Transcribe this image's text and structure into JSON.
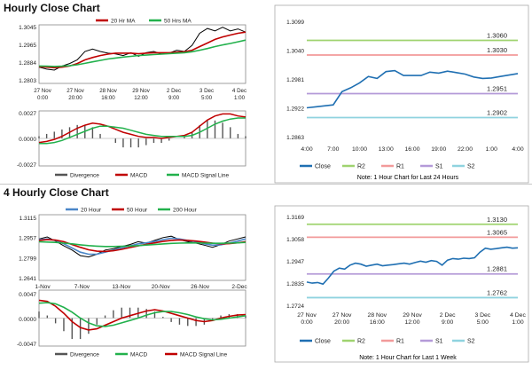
{
  "hourly": {
    "title": "Hourly Close Chart",
    "price_chart": {
      "legend": [
        "20 Hr MA",
        "50 Hrs MA"
      ],
      "legend_colors": [
        "#c00000",
        "#22b14c"
      ],
      "yticks": [
        "1.3045",
        "1.2965",
        "1.2884",
        "1.2803"
      ],
      "xticks": [
        "27 Nov|0:00",
        "27 Nov|20:00",
        "28 Nov|16:00",
        "29 Nov|12:00",
        "2 Dec|9:00",
        "3 Dec|5:00",
        "4 Dec|1:00"
      ]
    },
    "macd_chart": {
      "yticks": [
        "0.0027",
        "0.0000",
        "-0.0027"
      ],
      "legend": [
        "Divergence",
        "MACD",
        "MACD Signal Line"
      ]
    },
    "close_chart": {
      "yticks": [
        "1.3099",
        "1.3040",
        "1.2981",
        "1.2922",
        "1.2863"
      ],
      "xticks": [
        "4:00",
        "7:00",
        "10:00",
        "13:00",
        "16:00",
        "19:00",
        "22:00",
        "1:00",
        "4:00"
      ],
      "levels": [
        {
          "name": "R2",
          "label": "1.3060",
          "color": "#9fd36f"
        },
        {
          "name": "R1",
          "label": "1.3030",
          "color": "#f29a9a"
        },
        {
          "name": "S1",
          "label": "1.2951",
          "color": "#b49ad8"
        },
        {
          "name": "S2",
          "label": "1.2902",
          "color": "#8fd3df"
        }
      ],
      "legend": [
        "Close",
        "R2",
        "R1",
        "S1",
        "S2"
      ],
      "note": "Note: 1 Hour Chart for Last 24 Hours"
    }
  },
  "four_hourly": {
    "title": "4 Hourly Close Chart",
    "price_chart": {
      "legend": [
        "20 Hour",
        "50 Hour",
        "200 Hour"
      ],
      "legend_colors": [
        "#4a86c8",
        "#c00000",
        "#22b14c"
      ],
      "yticks": [
        "1.3115",
        "1.2957",
        "1.2799",
        "1.2641"
      ],
      "xticks": [
        "1-Nov",
        "7-Nov",
        "13-Nov",
        "20-Nov",
        "26-Nov",
        "2-Dec"
      ]
    },
    "macd_chart": {
      "yticks": [
        "0.0047",
        "0.0000",
        "-0.0047"
      ],
      "legend": [
        "Divergence",
        "MACD",
        "MACD Signal Line"
      ]
    },
    "close_chart": {
      "yticks": [
        "1.3169",
        "1.3058",
        "1.2947",
        "1.2835",
        "1.2724"
      ],
      "xticks": [
        "27 Nov|0:00",
        "27 Nov|20:00",
        "28 Nov|16:00",
        "29 Nov|12:00",
        "2 Dec|9:00",
        "3 Dec|5:00",
        "4 Dec|1:00"
      ],
      "levels": [
        {
          "name": "R2",
          "label": "1.3130",
          "color": "#9fd36f"
        },
        {
          "name": "R1",
          "label": "1.3065",
          "color": "#f29a9a"
        },
        {
          "name": "S1",
          "label": "1.2881",
          "color": "#b49ad8"
        },
        {
          "name": "S2",
          "label": "1.2762",
          "color": "#8fd3df"
        }
      ],
      "legend": [
        "Close",
        "R2",
        "R1",
        "S1",
        "S2"
      ],
      "note": "Note: 1 Hour Chart for Last 1 Week"
    }
  },
  "chart_data": [
    {
      "type": "line",
      "panel": "hourly-close",
      "x": [
        "4:00",
        "5:00",
        "6:00",
        "7:00",
        "8:00",
        "9:00",
        "10:00",
        "11:00",
        "12:00",
        "13:00",
        "14:00",
        "15:00",
        "16:00",
        "17:00",
        "18:00",
        "19:00",
        "20:00",
        "21:00",
        "22:00",
        "23:00",
        "0:00",
        "1:00",
        "2:00",
        "3:00",
        "4:00"
      ],
      "series": [
        {
          "name": "Close",
          "color": "#1f6fb2",
          "values": [
            1.2922,
            1.2924,
            1.2926,
            1.2928,
            1.2955,
            1.2963,
            1.2973,
            1.2986,
            1.2982,
            1.2996,
            1.2998,
            1.2988,
            1.2988,
            1.2988,
            1.2995,
            1.2993,
            1.2997,
            1.2994,
            1.2991,
            1.2985,
            1.2982,
            1.2983,
            1.2986,
            1.2989,
            1.2992
          ]
        }
      ],
      "hlines": {
        "R2": 1.306,
        "R1": 1.303,
        "S1": 1.2951,
        "S2": 1.2902
      },
      "ylim": [
        1.2863,
        1.3099
      ]
    },
    {
      "type": "line",
      "panel": "four-hourly-close",
      "series": [
        {
          "name": "Close",
          "color": "#1f6fb2",
          "values": [
            1.284,
            1.2835,
            1.2838,
            1.283,
            1.286,
            1.2895,
            1.291,
            1.2905,
            1.2925,
            1.2935,
            1.293,
            1.292,
            1.2925,
            1.293,
            1.2922,
            1.2925,
            1.2928,
            1.2932,
            1.2935,
            1.293,
            1.2938,
            1.2945,
            1.294,
            1.2948,
            1.2944,
            1.2925,
            1.295,
            1.2958,
            1.2955,
            1.296,
            1.2958,
            1.2962,
            1.299,
            1.301,
            1.3005,
            1.3008,
            1.3012,
            1.3015,
            1.301,
            1.3012
          ]
        }
      ],
      "hlines": {
        "R2": 1.313,
        "R1": 1.3065,
        "S1": 1.2881,
        "S2": 1.2762
      },
      "ylim": [
        1.2724,
        1.3169
      ]
    },
    {
      "type": "line",
      "panel": "hourly-price",
      "series": [
        {
          "name": "Close",
          "color": "#000000",
          "values": [
            1.287,
            1.2862,
            1.2858,
            1.2875,
            1.2885,
            1.29,
            1.2935,
            1.2945,
            1.2935,
            1.2928,
            1.2925,
            1.2918,
            1.293,
            1.2915,
            1.293,
            1.2935,
            1.2925,
            1.2928,
            1.294,
            1.2935,
            1.296,
            1.301,
            1.303,
            1.302,
            1.3035,
            1.302,
            1.3028,
            1.3015
          ]
        },
        {
          "name": "20 Hr MA",
          "color": "#c00000",
          "values": [
            1.2872,
            1.287,
            1.2868,
            1.287,
            1.2875,
            1.2885,
            1.29,
            1.291,
            1.2918,
            1.2924,
            1.2928,
            1.2928,
            1.2928,
            1.2926,
            1.2928,
            1.293,
            1.293,
            1.293,
            1.2932,
            1.2934,
            1.294,
            1.2955,
            1.297,
            1.2985,
            1.2995,
            1.3003,
            1.301,
            1.3015
          ]
        },
        {
          "name": "50 Hrs MA",
          "color": "#22b14c",
          "values": [
            1.2875,
            1.2874,
            1.2873,
            1.2874,
            1.2876,
            1.288,
            1.2886,
            1.2892,
            1.2898,
            1.2904,
            1.2908,
            1.2912,
            1.2915,
            1.2918,
            1.292,
            1.2922,
            1.2924,
            1.2926,
            1.2928,
            1.293,
            1.2934,
            1.294,
            1.2947,
            1.2955,
            1.2962,
            1.2968,
            1.2975,
            1.2982
          ]
        }
      ],
      "ylim": [
        1.2803,
        1.3045
      ]
    },
    {
      "type": "line",
      "panel": "hourly-macd",
      "series": [
        {
          "name": "MACD",
          "color": "#c00000",
          "values": [
            -0.0004,
            -0.0003,
            -0.0001,
            0.0002,
            0.0006,
            0.001,
            0.0013,
            0.0015,
            0.0014,
            0.0012,
            0.0009,
            0.0006,
            0.0004,
            0.0002,
            0.0001,
            0.0001,
            0.0,
            0.0001,
            0.0002,
            0.0003,
            0.0006,
            0.0012,
            0.0018,
            0.0022,
            0.0024,
            0.0024,
            0.0022,
            0.0021
          ]
        },
        {
          "name": "MACD Signal Line",
          "color": "#22b14c",
          "values": [
            -0.0005,
            -0.0005,
            -0.0004,
            -0.0002,
            0.0001,
            0.0004,
            0.0007,
            0.001,
            0.0012,
            0.0012,
            0.0011,
            0.001,
            0.0008,
            0.0006,
            0.0004,
            0.0003,
            0.0002,
            0.0002,
            0.0002,
            0.0002,
            0.0003,
            0.0006,
            0.001,
            0.0014,
            0.0017,
            0.0019,
            0.002,
            0.002
          ]
        }
      ],
      "ylim": [
        -0.0027,
        0.0027
      ]
    },
    {
      "type": "line",
      "panel": "four-hourly-price",
      "series": [
        {
          "name": "Close",
          "color": "#000000",
          "values": [
            1.294,
            1.2955,
            1.2925,
            1.289,
            1.286,
            1.282,
            1.281,
            1.283,
            1.286,
            1.287,
            1.2885,
            1.29,
            1.292,
            1.291,
            1.293,
            1.295,
            1.296,
            1.2935,
            1.292,
            1.291,
            1.2895,
            1.288,
            1.29,
            1.2925,
            1.294,
            1.2955
          ]
        },
        {
          "name": "20 Hour",
          "color": "#4a86c8",
          "values": [
            1.2935,
            1.294,
            1.293,
            1.2905,
            1.2875,
            1.2845,
            1.283,
            1.283,
            1.2845,
            1.286,
            1.2875,
            1.289,
            1.2905,
            1.2912,
            1.2922,
            1.2935,
            1.2945,
            1.294,
            1.293,
            1.292,
            1.2905,
            1.2895,
            1.2898,
            1.291,
            1.2925,
            1.294
          ]
        },
        {
          "name": "50 Hour",
          "color": "#c00000",
          "values": [
            1.293,
            1.2935,
            1.2932,
            1.292,
            1.29,
            1.288,
            1.2862,
            1.2852,
            1.285,
            1.2855,
            1.2865,
            1.2878,
            1.289,
            1.2902,
            1.2912,
            1.2922,
            1.293,
            1.2933,
            1.293,
            1.2925,
            1.2918,
            1.291,
            1.2905,
            1.2906,
            1.2912,
            1.292
          ]
        },
        {
          "name": "200 Hour",
          "color": "#22b14c",
          "values": [
            1.292,
            1.2918,
            1.2915,
            1.291,
            1.2905,
            1.2898,
            1.2892,
            1.2888,
            1.2886,
            1.2886,
            1.2887,
            1.2889,
            1.2892,
            1.2896,
            1.29,
            1.2904,
            1.2908,
            1.291,
            1.2911,
            1.2911,
            1.291,
            1.2909,
            1.2909,
            1.291,
            1.2912,
            1.2915
          ]
        }
      ],
      "ylim": [
        1.2641,
        1.3115
      ]
    },
    {
      "type": "line",
      "panel": "four-hourly-macd",
      "series": [
        {
          "name": "MACD",
          "color": "#c00000",
          "values": [
            0.003,
            0.0028,
            0.002,
            0.0008,
            -0.0006,
            -0.0016,
            -0.002,
            -0.0018,
            -0.0012,
            -0.0006,
            0.0,
            0.0004,
            0.0008,
            0.0012,
            0.0014,
            0.0012,
            0.0008,
            0.0004,
            0.0,
            -0.0004,
            -0.0006,
            -0.0004,
            0.0,
            0.0003,
            0.0005,
            0.0006
          ]
        },
        {
          "name": "MACD Signal Line",
          "color": "#22b14c",
          "values": [
            0.0025,
            0.0026,
            0.0024,
            0.0018,
            0.001,
            0.0,
            -0.0008,
            -0.0013,
            -0.0014,
            -0.0012,
            -0.0008,
            -0.0004,
            0.0,
            0.0005,
            0.0009,
            0.0011,
            0.0011,
            0.0009,
            0.0006,
            0.0002,
            -0.0001,
            -0.0003,
            -0.0002,
            0.0,
            0.0002,
            0.0004
          ]
        }
      ],
      "ylim": [
        -0.0047,
        0.0047
      ]
    }
  ]
}
